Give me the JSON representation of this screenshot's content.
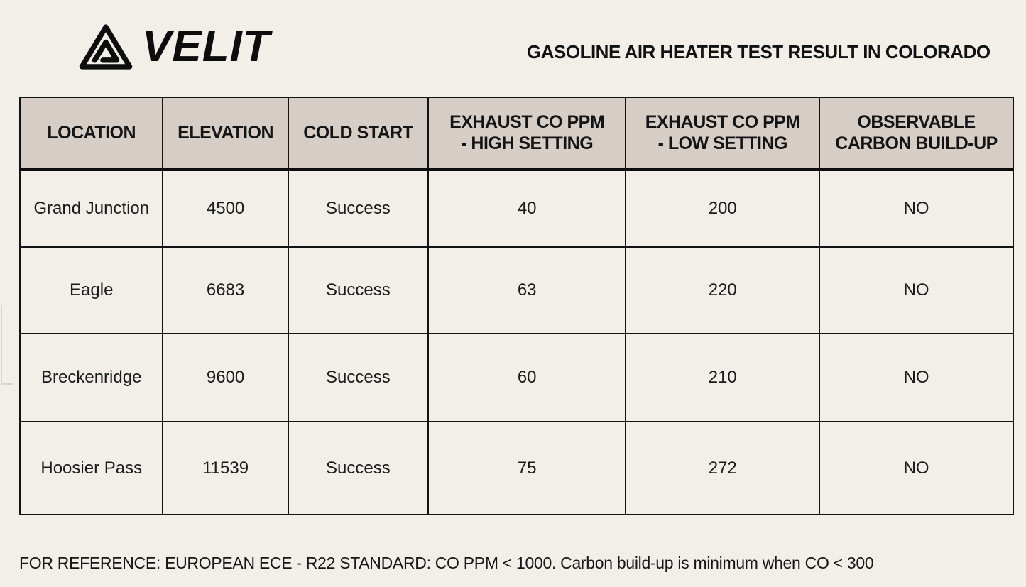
{
  "brand": {
    "name": "VELIT",
    "icon": "triangle-mountain-icon"
  },
  "title": "GASOLINE AIR HEATER TEST RESULT IN COLORADO",
  "table": {
    "columns": [
      "LOCATION",
      "ELEVATION",
      "COLD START",
      "EXHAUST CO PPM\n- HIGH SETTING",
      "EXHAUST CO PPM\n- LOW SETTING",
      "OBSERVABLE\nCARBON BUILD-UP"
    ],
    "rows": [
      [
        "Grand Junction",
        "4500",
        "Success",
        "40",
        "200",
        "NO"
      ],
      [
        "Eagle",
        "6683",
        "Success",
        "63",
        "220",
        "NO"
      ],
      [
        "Breckenridge",
        "9600",
        "Success",
        "60",
        "210",
        "NO"
      ],
      [
        "Hoosier Pass",
        "11539",
        "Success",
        "75",
        "272",
        "NO"
      ]
    ]
  },
  "footer": {
    "note": "FOR REFERENCE: EUROPEAN ECE - R22 STANDARD: CO PPM < 1000. Carbon build-up is minimum when CO < 300"
  },
  "colors": {
    "page_background": "#f2efe9",
    "header_cell_background": "#d7cdc7",
    "border": "#121212",
    "text": "#1b1b1b"
  }
}
